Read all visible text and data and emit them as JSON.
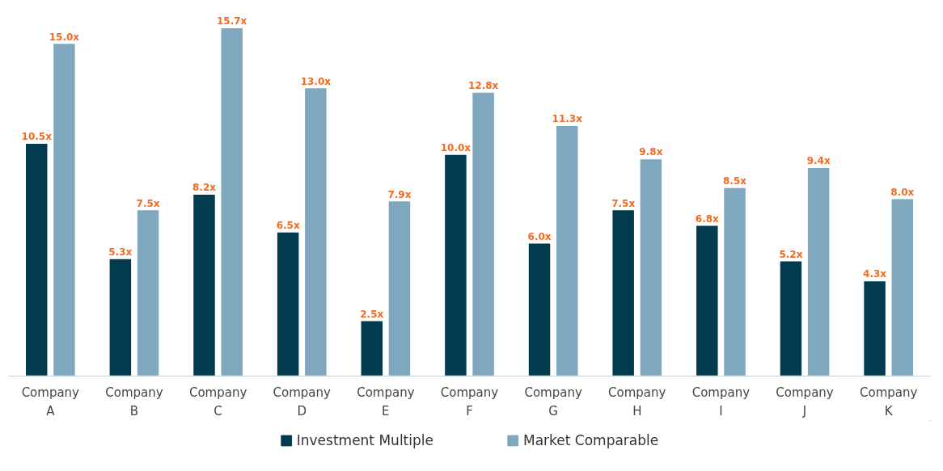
{
  "chart_data": {
    "type": "bar",
    "categories": [
      "Company A",
      "Company B",
      "Company C",
      "Company D",
      "Company E",
      "Company F",
      "Company G",
      "Company H",
      "Company I",
      "Company J",
      "Company K"
    ],
    "series": [
      {
        "name": "Investment Multiple",
        "color": "#023b4d",
        "values": [
          10.5,
          5.3,
          8.2,
          6.5,
          2.5,
          10.0,
          6.0,
          7.5,
          6.8,
          5.2,
          4.3
        ],
        "value_labels": [
          "10.5x",
          "5.3x",
          "8.2x",
          "6.5x",
          "2.5x",
          "10.0x",
          "6.0x",
          "7.5x",
          "6.8x",
          "5.2x",
          "4.3x"
        ]
      },
      {
        "name": "Market Comparable",
        "color": "#7fa7be",
        "values": [
          15.0,
          7.5,
          15.7,
          13.0,
          7.9,
          12.8,
          11.3,
          9.8,
          8.5,
          9.4,
          8.0
        ],
        "value_labels": [
          "15.0x",
          "7.5x",
          "15.7x",
          "13.0x",
          "7.9x",
          "12.8x",
          "11.3x",
          "9.8x",
          "8.5x",
          "9.4x",
          "8.0x"
        ]
      }
    ],
    "legend": "bottom",
    "grid": false
  }
}
